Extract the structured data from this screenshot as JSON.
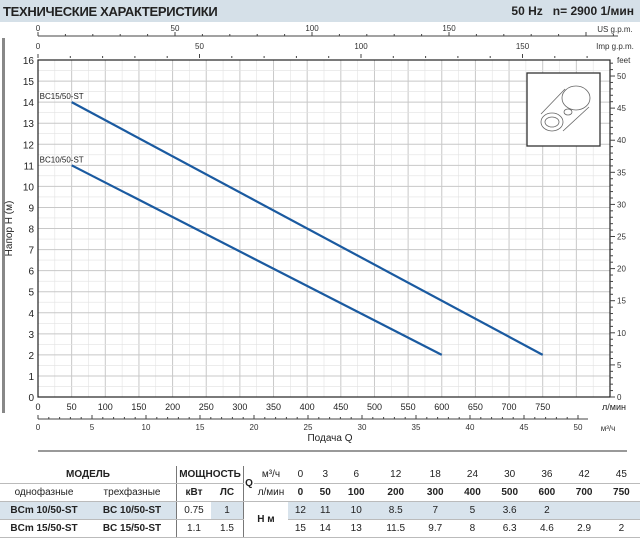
{
  "header": {
    "title": "ТЕХНИЧЕСКИЕ ХАРАКТЕРИСТИКИ",
    "freq": "50 Hz",
    "speed": "n= 2900  1/мин"
  },
  "chart_data": {
    "type": "line",
    "xlabel": "Подача Q",
    "ylabel": "Напор H (м)",
    "xlim": [
      0,
      850
    ],
    "ylim": [
      0,
      16
    ],
    "x_unit": "л/мин",
    "x_ticks": [
      0,
      50,
      100,
      150,
      200,
      250,
      300,
      350,
      400,
      450,
      500,
      550,
      600,
      650,
      700,
      750
    ],
    "y_ticks": [
      0,
      1,
      2,
      3,
      4,
      5,
      6,
      7,
      8,
      9,
      10,
      11,
      12,
      13,
      14,
      15,
      16
    ],
    "secondary_axes": {
      "us_gpm": {
        "label": "US g.p.m.",
        "ticks": [
          "0",
          "50",
          "100",
          "150"
        ]
      },
      "imp_gpm": {
        "label": "Imp g.p.m.",
        "ticks": [
          "0",
          "50",
          "100",
          "150"
        ]
      },
      "m3h": {
        "label": "м³/ч",
        "ticks": [
          "0",
          "5",
          "10",
          "15",
          "20",
          "25",
          "30",
          "35",
          "40",
          "45",
          "50"
        ]
      },
      "feet": {
        "label": "feet",
        "ticks": [
          "0",
          "5",
          "10",
          "15",
          "20",
          "25",
          "30",
          "35",
          "40",
          "45",
          "50"
        ]
      }
    },
    "grid": true,
    "series": [
      {
        "name": "BC15/50-ST",
        "x": [
          50,
          750
        ],
        "y": [
          14,
          2
        ],
        "color": "#1a5aa0"
      },
      {
        "name": "BC10/50-ST",
        "x": [
          50,
          600
        ],
        "y": [
          11,
          2
        ],
        "color": "#1a5aa0"
      }
    ]
  },
  "table": {
    "model": "МОДЕЛЬ",
    "power": "МОЩНОСТЬ",
    "q": "Q",
    "single": "однофазные",
    "three": "трехфазные",
    "kw": "кВт",
    "hp": "ЛС",
    "m3h_unit": "м³/ч",
    "lmin_unit": "л/мин",
    "h_unit": "Н м",
    "m3h": [
      "0",
      "3",
      "6",
      "12",
      "18",
      "24",
      "30",
      "36",
      "42",
      "45"
    ],
    "lmin": [
      "0",
      "50",
      "100",
      "200",
      "300",
      "400",
      "500",
      "600",
      "700",
      "750"
    ],
    "rows": [
      {
        "single": "BCm 10/50-ST",
        "three": "BC 10/50-ST",
        "kw": "0.75",
        "hp": "1",
        "h": [
          "12",
          "11",
          "10",
          "8.5",
          "7",
          "5",
          "3.6",
          "2",
          "",
          ""
        ]
      },
      {
        "single": "BCm 15/50-ST",
        "three": "BC 15/50-ST",
        "kw": "1.1",
        "hp": "1.5",
        "h": [
          "15",
          "14",
          "13",
          "11.5",
          "9.7",
          "8",
          "6.3",
          "4.6",
          "2.9",
          "2"
        ]
      }
    ]
  }
}
